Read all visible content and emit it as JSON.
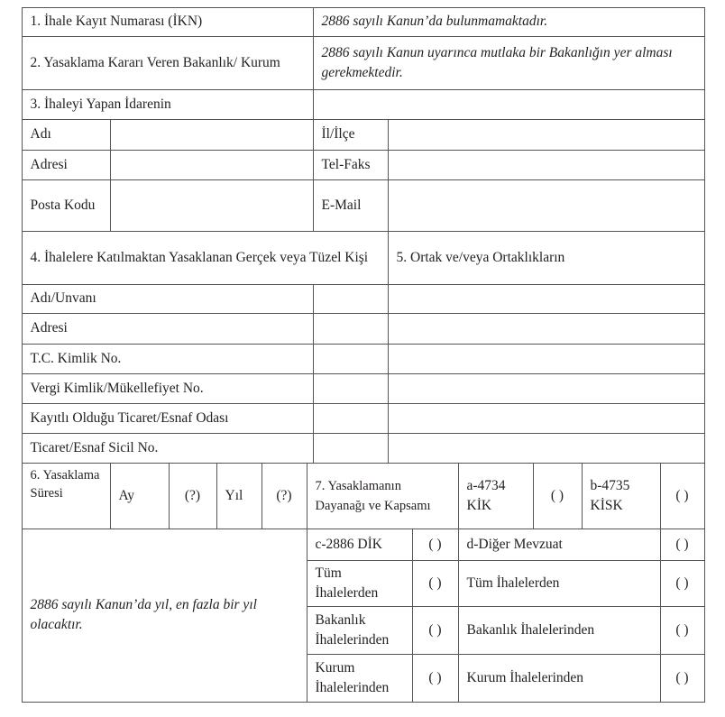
{
  "row1": {
    "label": "1. İhale Kayıt Numarası (İKN)",
    "value": "2886 sayılı Kanun’da bulunmamaktadır."
  },
  "row2": {
    "label": "2. Yasaklama Kararı Veren Bakanlık/ Kurum",
    "value": "2886 sayılı Kanun uyarınca mutlaka bir Bakanlığın yer alması gerekmektedir."
  },
  "row3": {
    "label": "3. İhaleyi Yapan İdarenin"
  },
  "idare": {
    "adi": "Adı",
    "il_ilce": "İl/İlçe",
    "adresi": "Adresi",
    "tel_faks": "Tel-Faks",
    "posta_kodu": "Posta Kodu",
    "email": "E-Mail"
  },
  "row4": {
    "label": "4. İhalelere Katılmaktan Yasaklanan Gerçek veya Tüzel Kişi",
    "label5": "5. Ortak ve/veya Ortaklıkların"
  },
  "kisi": [
    "Adı/Unvanı",
    "Adresi",
    "T.C. Kimlik No.",
    "Vergi Kimlik/Mükellefiyet No.",
    "Kayıtlı Olduğu Ticaret/Esnaf Odası",
    "Ticaret/Esnaf Sicil No."
  ],
  "row6": {
    "label": "6. Yasaklama Süresi",
    "ay": "Ay",
    "ay_val": "(?)",
    "yil": "Yıl",
    "yil_val": "(?)",
    "note": "2886 sayılı Kanun’da yıl, en fazla bir yıl olacaktır."
  },
  "row7": {
    "label": "7. Yasaklamanın Dayanağı ve Kapsamı",
    "a": "a-4734 KİK",
    "b": "b-4735 KİSK",
    "c": "c-2886 DİK",
    "d": "d-Diğer Mevzuat",
    "tum_left": "Tüm İhalelerden",
    "bak_left": "Bakanlık İhalelerinden",
    "kur_left": "Kurum İhalelerinden",
    "tum_right": "Tüm İhalelerden",
    "bak_right": "Bakanlık İhalelerinden",
    "kur_right": "Kurum İhalelerinden",
    "check": "( )"
  }
}
